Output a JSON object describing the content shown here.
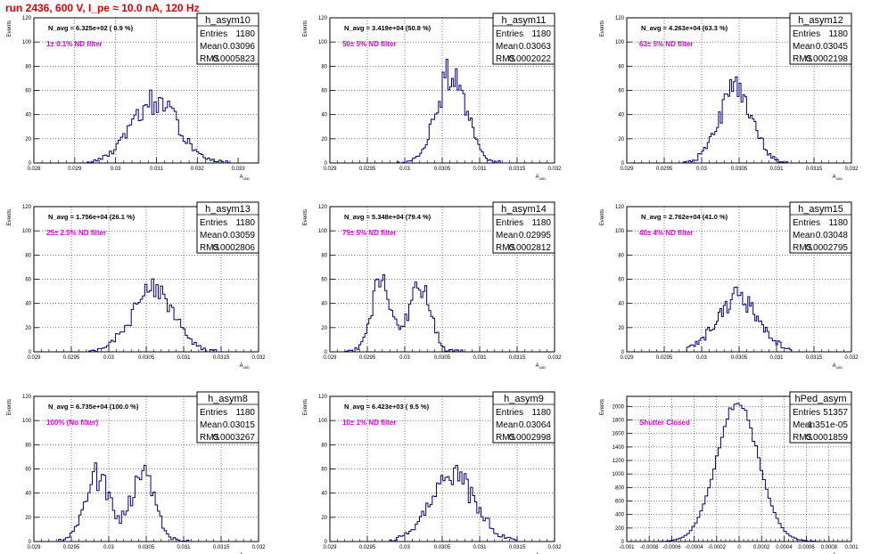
{
  "run_title": "run 2436,   600 V, I_pe ≈ 10.0 nA, 120 Hz",
  "colors": {
    "hist": "#00007f",
    "note": "#e600e6",
    "title": "#e00000",
    "grid": "#000000"
  },
  "stat_labels": {
    "entries": "Entries",
    "mean": "Mean",
    "rms": "RMS"
  },
  "chart_data": [
    {
      "type": "histogram",
      "name": "h_asym10",
      "ylabel": "Events",
      "xlabel": "A_uIID",
      "xlim": [
        0.028,
        0.0335
      ],
      "ylim": [
        0,
        120
      ],
      "xticks": [
        "0.028",
        "0.029",
        "0.03",
        "0.031",
        "0.032",
        "0.033"
      ],
      "xtick_values": [
        0.028,
        0.029,
        0.03,
        0.031,
        0.032,
        0.033
      ],
      "yticks": [
        0,
        20,
        40,
        60,
        80,
        100,
        120
      ],
      "stats": {
        "entries": "1180",
        "mean": "0.03096",
        "rms": "0.0005823"
      },
      "annotation": "N_avg = 6.325e+02 ( 0.9 %)",
      "note": "1± 0.1% ND filter",
      "mean": 0.03096,
      "sigma": 0.00058,
      "peak": 50,
      "nbins": 64,
      "bin_range": [
        0.0293,
        0.0328
      ],
      "bimodal": false
    },
    {
      "type": "histogram",
      "name": "h_asym11",
      "ylabel": "Events",
      "xlabel": "A_uIID",
      "xlim": [
        0.029,
        0.032
      ],
      "ylim": [
        0,
        120
      ],
      "xticks": [
        "0.029",
        "0.0295",
        "0.03",
        "0.0305",
        "0.031",
        "0.0315",
        "0.032"
      ],
      "xtick_values": [
        0.029,
        0.0295,
        0.03,
        0.0305,
        0.031,
        0.0315,
        0.032
      ],
      "yticks": [
        0,
        20,
        40,
        60,
        80,
        100,
        120
      ],
      "stats": {
        "entries": "1180",
        "mean": "0.03063",
        "rms": "0.0002022"
      },
      "annotation": "N_avg = 3.419e+04 (50.8 %)",
      "note": "50± 5% ND filter",
      "mean": 0.03063,
      "sigma": 0.0002,
      "peak": 75,
      "nbins": 60,
      "bin_range": [
        0.0299,
        0.0314
      ],
      "bimodal": false
    },
    {
      "type": "histogram",
      "name": "h_asym12",
      "ylabel": "Events",
      "xlabel": "A_uIID",
      "xlim": [
        0.029,
        0.032
      ],
      "ylim": [
        0,
        120
      ],
      "xticks": [
        "0.029",
        "0.0295",
        "0.03",
        "0.0305",
        "0.031",
        "0.0315",
        "0.032"
      ],
      "xtick_values": [
        0.029,
        0.0295,
        0.03,
        0.0305,
        0.031,
        0.0315,
        0.032
      ],
      "yticks": [
        0,
        20,
        40,
        60,
        80,
        100,
        120
      ],
      "stats": {
        "entries": "1180",
        "mean": "0.03045",
        "rms": "0.0002198"
      },
      "annotation": "N_avg = 4.263e+04 (63.3 %)",
      "note": "63± 5% ND filter",
      "mean": 0.03045,
      "sigma": 0.00022,
      "peak": 63,
      "nbins": 60,
      "bin_range": [
        0.0297,
        0.0312
      ],
      "bimodal": false
    },
    {
      "type": "histogram",
      "name": "h_asym13",
      "ylabel": "Events",
      "xlabel": "A_uIID",
      "xlim": [
        0.029,
        0.032
      ],
      "ylim": [
        0,
        120
      ],
      "xticks": [
        "0.029",
        "0.0295",
        "0.03",
        "0.0305",
        "0.031",
        "0.0315",
        "0.032"
      ],
      "xtick_values": [
        0.029,
        0.0295,
        0.03,
        0.0305,
        0.031,
        0.0315,
        0.032
      ],
      "yticks": [
        0,
        20,
        40,
        60,
        80,
        100,
        120
      ],
      "stats": {
        "entries": "1180",
        "mean": "0.03059",
        "rms": "0.0002806"
      },
      "annotation": "N_avg = 1.756e+04 (26.1 %)",
      "note": "25± 2.5% ND filter",
      "mean": 0.03059,
      "sigma": 0.00028,
      "peak": 50,
      "nbins": 60,
      "bin_range": [
        0.0297,
        0.0315
      ],
      "bimodal": false
    },
    {
      "type": "histogram",
      "name": "h_asym14",
      "ylabel": "Events",
      "xlabel": "A_uIID",
      "xlim": [
        0.029,
        0.032
      ],
      "ylim": [
        0,
        120
      ],
      "xticks": [
        "0.029",
        "0.0295",
        "0.03",
        "0.0305",
        "0.031",
        "0.0315",
        "0.032"
      ],
      "xtick_values": [
        0.029,
        0.0295,
        0.03,
        0.0305,
        0.031,
        0.0315,
        0.032
      ],
      "yticks": [
        0,
        20,
        40,
        60,
        80,
        100,
        120
      ],
      "stats": {
        "entries": "1180",
        "mean": "0.02995",
        "rms": "0.0002812"
      },
      "annotation": "N_avg = 5.348e+04 (79.4 %)",
      "note": "79± 5% ND filter",
      "mean": 0.02995,
      "sigma": 0.00028,
      "peak": 52,
      "nbins": 60,
      "bin_range": [
        0.0292,
        0.0308
      ],
      "bimodal": true
    },
    {
      "type": "histogram",
      "name": "h_asym15",
      "ylabel": "Events",
      "xlabel": "A_uIID",
      "xlim": [
        0.029,
        0.032
      ],
      "ylim": [
        0,
        120
      ],
      "xticks": [
        "0.029",
        "0.0295",
        "0.03",
        "0.0305",
        "0.031",
        "0.0315",
        "0.032"
      ],
      "xtick_values": [
        0.029,
        0.0295,
        0.03,
        0.0305,
        0.031,
        0.0315,
        0.032
      ],
      "yticks": [
        0,
        20,
        40,
        60,
        80,
        100,
        120
      ],
      "stats": {
        "entries": "1180",
        "mean": "0.03048",
        "rms": "0.0002795"
      },
      "annotation": "N_avg = 2.762e+04 (41.0 %)",
      "note": "40± 4% ND filter",
      "mean": 0.03048,
      "sigma": 0.00028,
      "peak": 45,
      "nbins": 60,
      "bin_range": [
        0.0298,
        0.0312
      ],
      "bimodal": false
    },
    {
      "type": "histogram",
      "name": "h_asym8",
      "ylabel": "Events",
      "xlabel": "A_uIID",
      "xlim": [
        0.029,
        0.032
      ],
      "ylim": [
        0,
        120
      ],
      "xticks": [
        "0.029",
        "0.0295",
        "0.03",
        "0.0305",
        "0.031",
        "0.0315",
        "0.032"
      ],
      "xtick_values": [
        0.029,
        0.0295,
        0.03,
        0.0305,
        0.031,
        0.0315,
        0.032
      ],
      "yticks": [
        0,
        20,
        40,
        60,
        80,
        100,
        120
      ],
      "stats": {
        "entries": "1180",
        "mean": "0.03015",
        "rms": "0.0003267"
      },
      "annotation": "N_avg = 6.735e+04 (100.0 %)",
      "note": "100% (No filter)",
      "mean": 0.03015,
      "sigma": 0.00033,
      "peak": 50,
      "nbins": 60,
      "bin_range": [
        0.0293,
        0.0311
      ],
      "bimodal": true
    },
    {
      "type": "histogram",
      "name": "h_asym9",
      "ylabel": "Events",
      "xlabel": "A_uIID",
      "xlim": [
        0.029,
        0.032
      ],
      "ylim": [
        0,
        120
      ],
      "xticks": [
        "0.029",
        "0.0295",
        "0.03",
        "0.0305",
        "0.031",
        "0.0315",
        "0.032"
      ],
      "xtick_values": [
        0.029,
        0.0295,
        0.03,
        0.0305,
        0.031,
        0.0315,
        0.032
      ],
      "yticks": [
        0,
        20,
        40,
        60,
        80,
        100,
        120
      ],
      "stats": {
        "entries": "1180",
        "mean": "0.03064",
        "rms": "0.0002998"
      },
      "annotation": "N_avg = 6.423e+03 ( 9.5 %)",
      "note": "10± 1% ND filter",
      "mean": 0.03064,
      "sigma": 0.0003,
      "peak": 55,
      "nbins": 60,
      "bin_range": [
        0.0298,
        0.0315
      ],
      "bimodal": false
    },
    {
      "type": "histogram",
      "name": "hPed_asym",
      "ylabel": "Events",
      "xlabel": "A_uIID",
      "xlim": [
        -0.001,
        0.001
      ],
      "ylim": [
        0,
        2150
      ],
      "xticks": [
        "-0.001",
        "-0.0008",
        "-0.0006",
        "-0.0004",
        "-0.0002",
        "0",
        "0.0002",
        "0.0004",
        "0.0006",
        "0.0008",
        "0.001"
      ],
      "xtick_values": [
        -0.001,
        -0.0008,
        -0.0006,
        -0.0004,
        -0.0002,
        0,
        0.0002,
        0.0004,
        0.0006,
        0.0008,
        0.001
      ],
      "yticks": [
        0,
        200,
        400,
        600,
        800,
        1000,
        1200,
        1400,
        1600,
        1800,
        2000
      ],
      "stats": {
        "entries": "51357",
        "mean": "-1.351e-05",
        "rms": "0.0001859"
      },
      "annotation": "",
      "note": "Shutter Closed",
      "mean": -1.35e-05,
      "sigma": 0.000186,
      "peak": 2050,
      "nbins": 60,
      "bin_range": [
        -0.0007,
        0.0007
      ],
      "bimodal": false
    }
  ]
}
